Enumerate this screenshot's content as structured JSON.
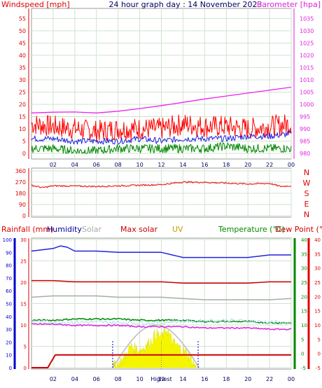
{
  "chart_data": [
    {
      "type": "line",
      "title": "24 hour graph day : 14 November 2023",
      "left_axis_label": "Windspeed [mph]",
      "right_axis_label": "Barometer [hpa]",
      "x_ticks": [
        "02",
        "04",
        "06",
        "08",
        "10",
        "12",
        "14",
        "16",
        "18",
        "20",
        "22",
        "00"
      ],
      "y_left_ticks": [
        "0",
        "5",
        "10",
        "15",
        "20",
        "25",
        "30",
        "35",
        "40",
        "45",
        "50",
        "55"
      ],
      "y_right_ticks": [
        "980",
        "985",
        "990",
        "995",
        "1000",
        "1005",
        "1010",
        "1015",
        "1020",
        "1025",
        "1030",
        "1035"
      ],
      "ylim_left": [
        0,
        58
      ],
      "ylim_right": [
        980,
        1038
      ],
      "series": [
        {
          "name": "Barometer",
          "axis": "right",
          "color": "#ee22ee",
          "x": [
            0,
            2,
            4,
            6,
            8,
            10,
            12,
            14,
            16,
            18,
            20,
            22,
            24
          ],
          "values": [
            996.5,
            996.8,
            996.9,
            996.5,
            997.2,
            998.3,
            999.5,
            1000.8,
            1002.2,
            1003.4,
            1004.6,
            1005.8,
            1007
          ]
        },
        {
          "name": "Gust",
          "axis": "left",
          "color": "#ff0000",
          "x": [
            0,
            2,
            4,
            6,
            8,
            10,
            12,
            14,
            16,
            18,
            20,
            22,
            24
          ],
          "values": [
            12,
            11,
            10,
            9,
            10,
            10,
            10,
            12,
            11,
            11,
            10,
            11,
            12
          ]
        },
        {
          "name": "Average wind",
          "axis": "left",
          "color": "#2222dd",
          "x": [
            0,
            2,
            4,
            6,
            8,
            10,
            12,
            14,
            16,
            18,
            20,
            22,
            24
          ],
          "values": [
            6,
            6,
            5,
            5,
            5,
            6,
            5,
            6,
            6,
            6,
            7,
            7,
            8
          ]
        },
        {
          "name": "Wind speed",
          "axis": "left",
          "color": "#008800",
          "x": [
            0,
            2,
            4,
            6,
            8,
            10,
            12,
            14,
            16,
            18,
            20,
            22,
            24
          ],
          "values": [
            2,
            2,
            1,
            1,
            2,
            2,
            2,
            2,
            2,
            3,
            2,
            2,
            2
          ]
        }
      ]
    },
    {
      "type": "line",
      "y_ticks": [
        "0",
        "90",
        "180",
        "270",
        "360"
      ],
      "ylim": [
        0,
        360
      ],
      "compass": [
        "N",
        "W",
        "S",
        "E",
        "N"
      ],
      "series": [
        {
          "name": "Wind direction",
          "color": "#ee2222",
          "x": [
            0,
            1,
            2,
            4,
            6,
            8,
            10,
            12,
            14,
            16,
            18,
            20,
            22,
            23,
            24
          ],
          "values": [
            245,
            225,
            240,
            238,
            235,
            240,
            245,
            250,
            270,
            268,
            262,
            255,
            260,
            235,
            240
          ]
        }
      ]
    },
    {
      "type": "line",
      "legend": [
        "Rainfall (mm)",
        "Humidity",
        "Solar",
        "Max solar",
        "UV",
        "Temperature (°C)",
        "Dew Point (°C)"
      ],
      "x_ticks": [
        "02",
        "04",
        "06",
        "08",
        "10",
        "12",
        "14",
        "16",
        "18",
        "20",
        "22",
        "00"
      ],
      "center_label": "Highest",
      "humidity_ticks": [
        "0",
        "10",
        "20",
        "30",
        "40",
        "50",
        "60",
        "70",
        "80",
        "90",
        "100"
      ],
      "rain_ticks": [
        "0",
        "5",
        "10",
        "15",
        "20",
        "25",
        "30"
      ],
      "temp_ticks": [
        "-5",
        "0",
        "5",
        "10",
        "15",
        "20",
        "25",
        "30",
        "35",
        "40"
      ],
      "ylim_humidity": [
        0,
        100
      ],
      "ylim_rain": [
        0,
        30
      ],
      "ylim_temp": [
        -5,
        40
      ],
      "series": [
        {
          "name": "Humidity",
          "axis": "humidity",
          "color": "#2222dd",
          "x": [
            0,
            1,
            2,
            2.7,
            3.3,
            4,
            6,
            8,
            10,
            12,
            13,
            13.5,
            14,
            16,
            18,
            20,
            22,
            23,
            24
          ],
          "values": [
            91,
            92,
            93,
            95,
            94,
            91,
            91,
            90,
            90,
            90,
            88,
            87,
            86,
            86,
            86,
            86,
            88,
            88,
            88
          ]
        },
        {
          "name": "Max solar",
          "axis": "humidity",
          "color": "#cc0000",
          "x": [
            0,
            2,
            4,
            6,
            8,
            10,
            12,
            14,
            16,
            18,
            20,
            22,
            24
          ],
          "values": [
            68,
            68,
            67,
            67,
            67,
            67,
            67,
            66,
            66,
            66,
            66,
            67,
            67
          ]
        },
        {
          "name": "Solar",
          "axis": "humidity",
          "color": "#aaaaaa",
          "x": [
            0,
            2,
            4,
            6,
            8,
            10,
            12,
            14,
            16,
            18,
            20,
            22,
            24
          ],
          "values": [
            55,
            56,
            56,
            56,
            55,
            55,
            55,
            54,
            53,
            53,
            53,
            53,
            54
          ]
        },
        {
          "name": "Temperature (°C)",
          "axis": "humidity",
          "color": "#008800",
          "x": [
            0,
            2,
            4,
            6,
            8,
            10,
            12,
            14,
            16,
            18,
            20,
            22,
            24
          ],
          "values": [
            37,
            37,
            38,
            38,
            38,
            37,
            37,
            37,
            36,
            36,
            36,
            35,
            35
          ]
        },
        {
          "name": "Dew Point (°C)",
          "axis": "humidity",
          "color": "#dd22dd",
          "x": [
            0,
            2,
            4,
            6,
            8,
            10,
            12,
            14,
            16,
            18,
            20,
            22,
            24
          ],
          "values": [
            34,
            34,
            33,
            33,
            33,
            32,
            32,
            32,
            31,
            31,
            31,
            30,
            30
          ]
        },
        {
          "name": "Rainfall (mm)",
          "axis": "rain",
          "color": "#cc0000",
          "x": [
            0,
            1.5,
            2.2,
            24
          ],
          "values": [
            0,
            0,
            3,
            3
          ]
        },
        {
          "name": "UV",
          "axis": "humidity",
          "color": "#e8e800",
          "x": [
            7.5,
            8.5,
            9.2,
            10,
            11,
            11.5,
            12,
            12.5,
            13,
            13.5,
            14.5,
            15.2
          ],
          "values": [
            0,
            2,
            5,
            4,
            6,
            8,
            7,
            9,
            6,
            5,
            3,
            0
          ]
        }
      ]
    }
  ]
}
